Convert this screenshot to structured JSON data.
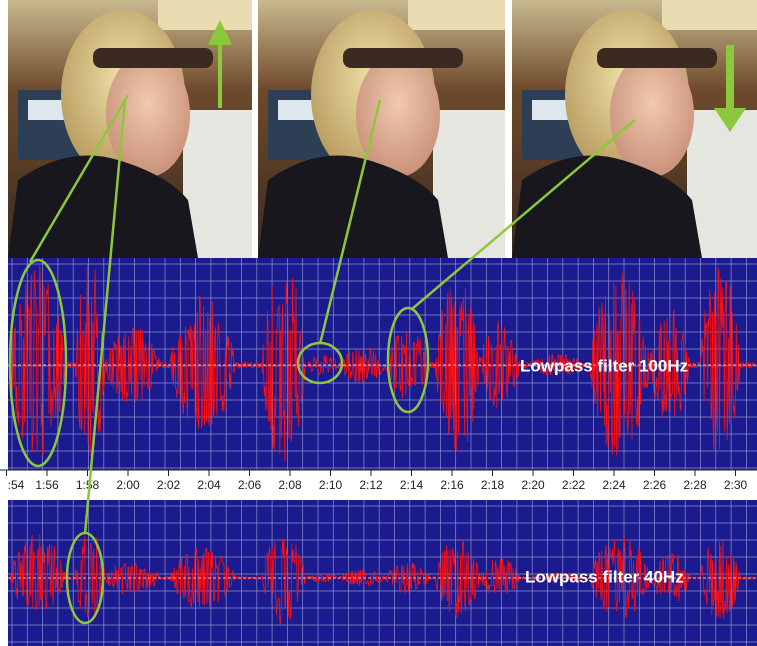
{
  "panels": [
    {
      "label": "Lowpass filter 100Hz"
    },
    {
      "label": "Lowpass filter 40Hz"
    }
  ],
  "time_axis": {
    "ticks": [
      ":54",
      "1:56",
      "1:58",
      "2:00",
      "2:02",
      "2:04",
      "2:06",
      "2:08",
      "2:10",
      "2:12",
      "2:14",
      "2:16",
      "2:18",
      "2:20",
      "2:22",
      "2:24",
      "2:26",
      "2:28",
      "2:30"
    ]
  }
}
